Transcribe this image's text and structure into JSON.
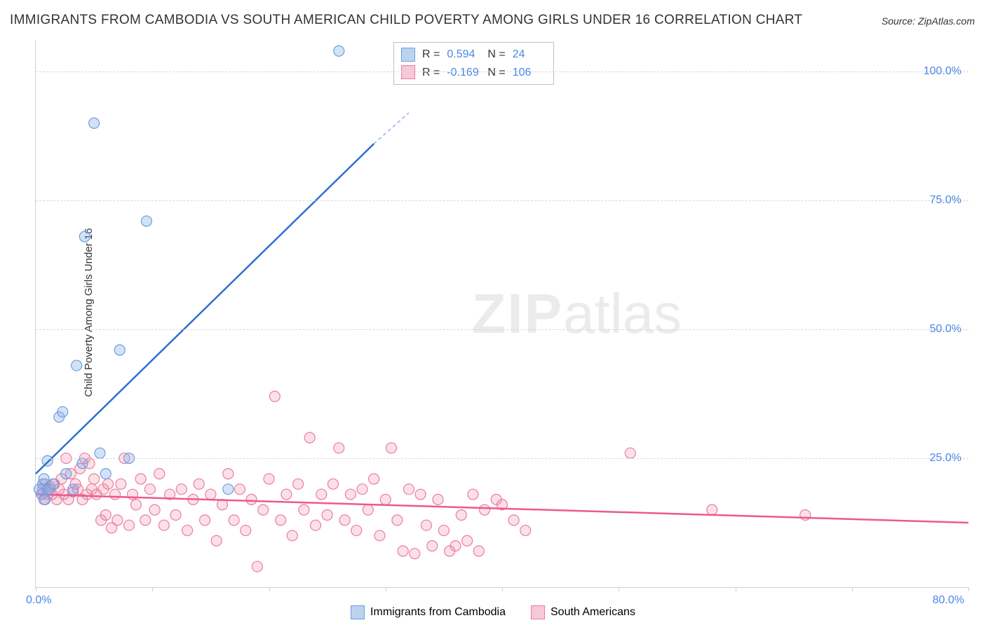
{
  "title": "IMMIGRANTS FROM CAMBODIA VS SOUTH AMERICAN CHILD POVERTY AMONG GIRLS UNDER 16 CORRELATION CHART",
  "source_label": "Source:",
  "source_name": "ZipAtlas.com",
  "ylabel": "Child Poverty Among Girls Under 16",
  "watermark_bold": "ZIP",
  "watermark_rest": "atlas",
  "chart": {
    "type": "scatter",
    "xlim": [
      0,
      80
    ],
    "ylim": [
      0,
      106
    ],
    "xtick_label_left": "0.0%",
    "xtick_label_right": "80.0%",
    "xticks": [
      0,
      10,
      20,
      30,
      40,
      50,
      60,
      70,
      80
    ],
    "yticks": [
      25,
      50,
      75,
      100
    ],
    "ytick_labels": [
      "25.0%",
      "50.0%",
      "75.0%",
      "100.0%"
    ],
    "grid_color": "#d9d9d9",
    "background_color": "#ffffff",
    "marker_radius": 7.5,
    "series": [
      {
        "name": "Immigrants from Cambodia",
        "color_fill": "rgba(128,172,232,0.35)",
        "color_stroke": "#6d9de0",
        "swatch_fill": "#bcd3f0",
        "swatch_border": "#6d9de0",
        "trend_color": "#2f6fd0",
        "R": "0.594",
        "N": "24",
        "trend": {
          "x1": 0,
          "y1": 22,
          "x2_solid": 29,
          "y2_solid": 86,
          "x2_dash": 32,
          "y2_dash": 92
        },
        "points": [
          [
            0.3,
            19
          ],
          [
            0.5,
            18
          ],
          [
            0.6,
            20
          ],
          [
            0.7,
            21
          ],
          [
            0.8,
            17
          ],
          [
            1.0,
            19
          ],
          [
            1.2,
            19
          ],
          [
            1.5,
            20
          ],
          [
            2.0,
            33
          ],
          [
            2.3,
            34
          ],
          [
            3.5,
            43
          ],
          [
            4.2,
            68
          ],
          [
            7.2,
            46
          ],
          [
            4.0,
            24
          ],
          [
            5.5,
            26
          ],
          [
            6.0,
            22
          ],
          [
            8.0,
            25
          ],
          [
            9.5,
            71
          ],
          [
            5.0,
            90
          ],
          [
            1.0,
            24.5
          ],
          [
            2.6,
            22
          ],
          [
            3.2,
            19
          ],
          [
            16.5,
            19
          ],
          [
            26.0,
            104
          ]
        ]
      },
      {
        "name": "South Americans",
        "color_fill": "rgba(240,130,160,0.25)",
        "color_stroke": "#ec7ca0",
        "swatch_fill": "#f7c8d6",
        "swatch_border": "#ec7ca0",
        "trend_color": "#ec5a8a",
        "R": "-0.169",
        "N": "106",
        "trend": {
          "x1": 0,
          "y1": 18,
          "x2": 80,
          "y2": 12.5
        },
        "points": [
          [
            0.5,
            18
          ],
          [
            0.6,
            19
          ],
          [
            0.7,
            17
          ],
          [
            0.8,
            20
          ],
          [
            1.0,
            18
          ],
          [
            1.2,
            19.5
          ],
          [
            1.4,
            18
          ],
          [
            1.6,
            20
          ],
          [
            1.8,
            17
          ],
          [
            2.0,
            19
          ],
          [
            2.2,
            21
          ],
          [
            2.4,
            18
          ],
          [
            2.6,
            25
          ],
          [
            2.8,
            17
          ],
          [
            3.0,
            22
          ],
          [
            3.2,
            18.5
          ],
          [
            3.4,
            20
          ],
          [
            3.6,
            19
          ],
          [
            3.8,
            23
          ],
          [
            4.0,
            17
          ],
          [
            4.2,
            25
          ],
          [
            4.4,
            18
          ],
          [
            4.6,
            24
          ],
          [
            4.8,
            19
          ],
          [
            5.0,
            21
          ],
          [
            5.2,
            18
          ],
          [
            5.6,
            13
          ],
          [
            5.8,
            19
          ],
          [
            6.0,
            14
          ],
          [
            6.2,
            20
          ],
          [
            6.5,
            11.5
          ],
          [
            6.8,
            18
          ],
          [
            7.0,
            13
          ],
          [
            7.3,
            20
          ],
          [
            7.6,
            25
          ],
          [
            8.0,
            12
          ],
          [
            8.3,
            18
          ],
          [
            8.6,
            16
          ],
          [
            9.0,
            21
          ],
          [
            9.4,
            13
          ],
          [
            9.8,
            19
          ],
          [
            10.2,
            15
          ],
          [
            10.6,
            22
          ],
          [
            11.0,
            12
          ],
          [
            11.5,
            18
          ],
          [
            12.0,
            14
          ],
          [
            12.5,
            19
          ],
          [
            13.0,
            11
          ],
          [
            13.5,
            17
          ],
          [
            14.0,
            20
          ],
          [
            14.5,
            13
          ],
          [
            15.0,
            18
          ],
          [
            15.5,
            9
          ],
          [
            16.0,
            16
          ],
          [
            16.5,
            22
          ],
          [
            17.0,
            13
          ],
          [
            17.5,
            19
          ],
          [
            18.0,
            11
          ],
          [
            18.5,
            17
          ],
          [
            19.0,
            4
          ],
          [
            19.5,
            15
          ],
          [
            20.0,
            21
          ],
          [
            20.5,
            37
          ],
          [
            21.0,
            13
          ],
          [
            21.5,
            18
          ],
          [
            22.0,
            10
          ],
          [
            22.5,
            20
          ],
          [
            23.0,
            15
          ],
          [
            23.5,
            29
          ],
          [
            24.0,
            12
          ],
          [
            24.5,
            18
          ],
          [
            25.0,
            14
          ],
          [
            25.5,
            20
          ],
          [
            26.0,
            27
          ],
          [
            26.5,
            13
          ],
          [
            27.0,
            18
          ],
          [
            27.5,
            11
          ],
          [
            28.0,
            19
          ],
          [
            28.5,
            15
          ],
          [
            29.0,
            21
          ],
          [
            29.5,
            10
          ],
          [
            30.0,
            17
          ],
          [
            30.5,
            27
          ],
          [
            31.0,
            13
          ],
          [
            31.5,
            7
          ],
          [
            32.0,
            19
          ],
          [
            32.5,
            6.5
          ],
          [
            33.0,
            18
          ],
          [
            33.5,
            12
          ],
          [
            34.0,
            8
          ],
          [
            34.5,
            17
          ],
          [
            35.0,
            11
          ],
          [
            35.5,
            7
          ],
          [
            36.0,
            8
          ],
          [
            36.5,
            14
          ],
          [
            37.0,
            9
          ],
          [
            37.5,
            18
          ],
          [
            38.0,
            7
          ],
          [
            38.5,
            15
          ],
          [
            39.5,
            17
          ],
          [
            40.0,
            16
          ],
          [
            41.0,
            13
          ],
          [
            42.0,
            11
          ],
          [
            51.0,
            26
          ],
          [
            58.0,
            15
          ],
          [
            66.0,
            14
          ]
        ]
      }
    ]
  },
  "legend_box": {
    "rows": [
      {
        "sq_fill": "#bcd3f0",
        "sq_border": "#6d9de0",
        "R_label": "R =",
        "R": "0.594",
        "N_label": "N =",
        "N": "24"
      },
      {
        "sq_fill": "#f7c8d6",
        "sq_border": "#ec7ca0",
        "R_label": "R =",
        "R": "-0.169",
        "N_label": "N =",
        "N": "106"
      }
    ]
  },
  "bottom_legend": [
    {
      "sq_fill": "#bcd3f0",
      "sq_border": "#6d9de0",
      "label": "Immigrants from Cambodia"
    },
    {
      "sq_fill": "#f7c8d6",
      "sq_border": "#ec7ca0",
      "label": "South Americans"
    }
  ]
}
